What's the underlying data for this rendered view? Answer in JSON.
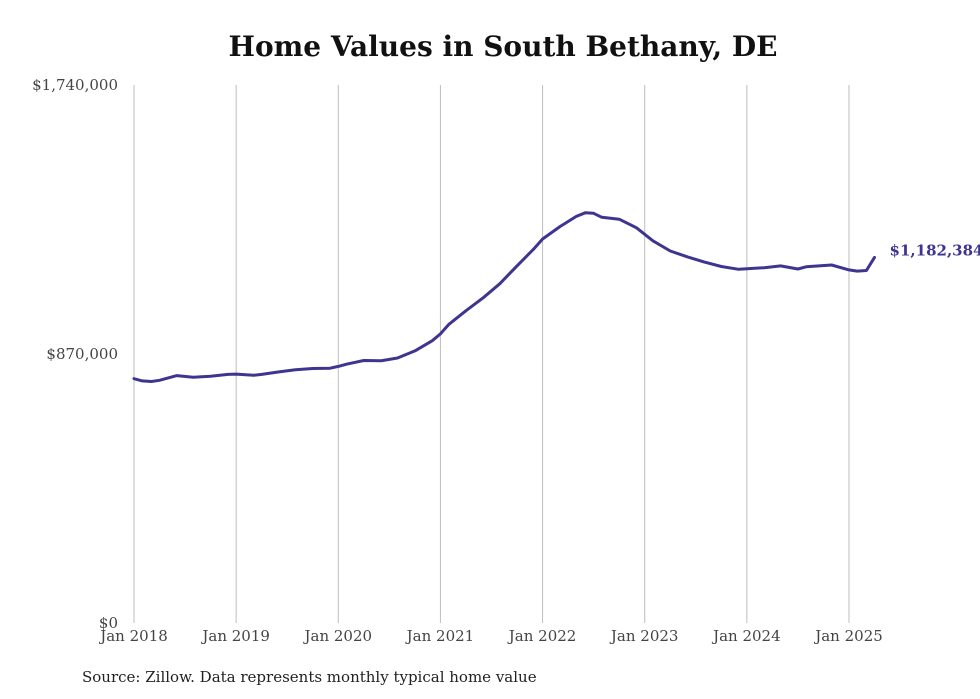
{
  "chart_data": {
    "type": "line",
    "title": "Home Values in South Bethany, DE",
    "xlabel": "",
    "ylabel": "",
    "ylim": [
      0,
      1740000
    ],
    "y_ticks": [
      {
        "value": 0,
        "label": "$0"
      },
      {
        "value": 870000,
        "label": "$870,000"
      },
      {
        "value": 1740000,
        "label": "$1,740,000"
      }
    ],
    "x_ticks": [
      {
        "value": 2018.0,
        "label": "Jan 2018"
      },
      {
        "value": 2019.0,
        "label": "Jan 2019"
      },
      {
        "value": 2020.0,
        "label": "Jan 2020"
      },
      {
        "value": 2021.0,
        "label": "Jan 2021"
      },
      {
        "value": 2022.0,
        "label": "Jan 2022"
      },
      {
        "value": 2023.0,
        "label": "Jan 2023"
      },
      {
        "value": 2024.0,
        "label": "Jan 2024"
      },
      {
        "value": 2025.0,
        "label": "Jan 2025"
      }
    ],
    "grid": {
      "vertical": true,
      "horizontal": false
    },
    "line_color": "#3d3590",
    "end_label": "$1,182,384",
    "series": [
      {
        "values": [
          [
            2018.0,
            790000
          ],
          [
            2018.08,
            783000
          ],
          [
            2018.17,
            781000
          ],
          [
            2018.25,
            785000
          ],
          [
            2018.42,
            800000
          ],
          [
            2018.58,
            795000
          ],
          [
            2018.75,
            798000
          ],
          [
            2018.92,
            804000
          ],
          [
            2019.0,
            805000
          ],
          [
            2019.17,
            801000
          ],
          [
            2019.25,
            804000
          ],
          [
            2019.42,
            812000
          ],
          [
            2019.58,
            819000
          ],
          [
            2019.75,
            823000
          ],
          [
            2019.92,
            824000
          ],
          [
            2020.0,
            830000
          ],
          [
            2020.08,
            837000
          ],
          [
            2020.25,
            849000
          ],
          [
            2020.42,
            848000
          ],
          [
            2020.58,
            857000
          ],
          [
            2020.75,
            880000
          ],
          [
            2020.92,
            913000
          ],
          [
            2021.0,
            935000
          ],
          [
            2021.08,
            965000
          ],
          [
            2021.25,
            1010000
          ],
          [
            2021.42,
            1052000
          ],
          [
            2021.58,
            1097000
          ],
          [
            2021.75,
            1155000
          ],
          [
            2021.92,
            1212000
          ],
          [
            2022.0,
            1242000
          ],
          [
            2022.17,
            1282000
          ],
          [
            2022.33,
            1315000
          ],
          [
            2022.42,
            1327000
          ],
          [
            2022.5,
            1325000
          ],
          [
            2022.58,
            1312000
          ],
          [
            2022.75,
            1306000
          ],
          [
            2022.92,
            1278000
          ],
          [
            2023.08,
            1236000
          ],
          [
            2023.25,
            1203000
          ],
          [
            2023.42,
            1184000
          ],
          [
            2023.58,
            1168000
          ],
          [
            2023.75,
            1153000
          ],
          [
            2023.92,
            1144000
          ],
          [
            2024.0,
            1146000
          ],
          [
            2024.17,
            1149000
          ],
          [
            2024.33,
            1155000
          ],
          [
            2024.5,
            1145000
          ],
          [
            2024.58,
            1152000
          ],
          [
            2024.83,
            1158000
          ],
          [
            2025.0,
            1142000
          ],
          [
            2025.08,
            1138000
          ],
          [
            2025.17,
            1140000
          ],
          [
            2025.25,
            1182384
          ]
        ]
      }
    ]
  },
  "source_note": "Source: Zillow. Data represents monthly typical home value"
}
